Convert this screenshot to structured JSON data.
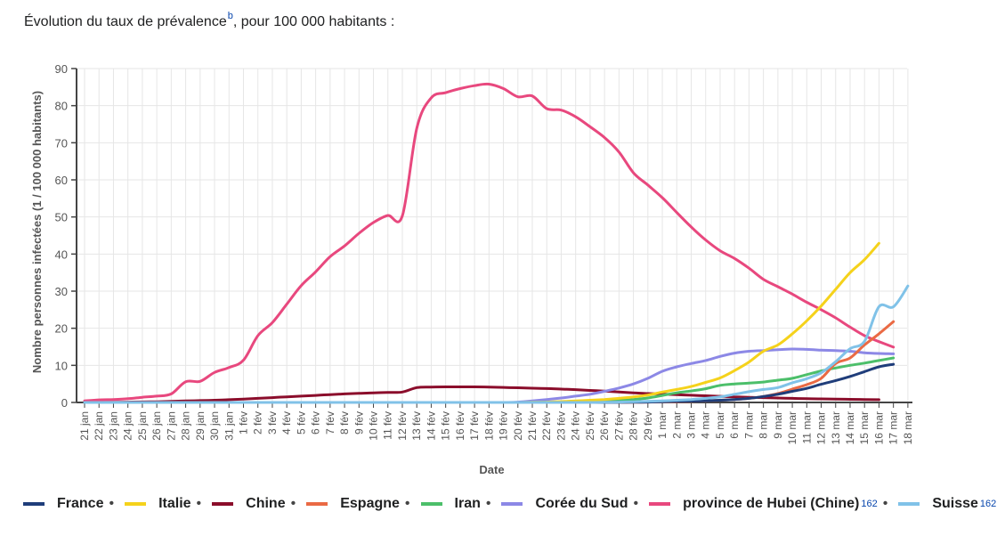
{
  "caption": {
    "text": "Évolution du taux de prévalence",
    "note": "b",
    "suffix": ", pour 100 000 habitants :"
  },
  "legend": {
    "separator": "•",
    "items": [
      {
        "label": "France",
        "color": "#1f3d7a",
        "ref": ""
      },
      {
        "label": "Italie",
        "color": "#f5d21b",
        "ref": ""
      },
      {
        "label": "Chine",
        "color": "#8b0d2b",
        "ref": ""
      },
      {
        "label": "Espagne",
        "color": "#ea6a44",
        "ref": ""
      },
      {
        "label": "Iran",
        "color": "#4cbf6a",
        "ref": ""
      },
      {
        "label": "Corée du Sud",
        "color": "#8c88e6",
        "ref": ""
      },
      {
        "label": "province de Hubei (Chine)",
        "color": "#e8487e",
        "ref": "162"
      },
      {
        "label": "Suisse",
        "color": "#80c2e8",
        "ref": "162"
      }
    ]
  },
  "chart_data": {
    "type": "line",
    "ylabel": "Nombre personnes infectées (1 / 100 000 habitants)",
    "xlabel": "Date",
    "ylim": [
      0,
      90
    ],
    "yticks": [
      0,
      10,
      20,
      30,
      40,
      50,
      60,
      70,
      80,
      90
    ],
    "grid": true,
    "legend_position": "bottom",
    "x": [
      "21 jan",
      "22 jan",
      "23 jan",
      "24 jan",
      "25 jan",
      "26 jan",
      "27 jan",
      "28 jan",
      "29 jan",
      "30 jan",
      "31 jan",
      "1 fév",
      "2 fév",
      "3 fév",
      "4 fév",
      "5 fév",
      "6 fév",
      "7 fév",
      "8 fév",
      "9 fév",
      "10 fév",
      "11 fév",
      "12 fév",
      "13 fév",
      "14 fév",
      "15 fév",
      "16 fév",
      "17 fév",
      "18 fév",
      "19 fév",
      "20 fév",
      "21 fév",
      "22 fév",
      "23 fév",
      "24 fév",
      "25 fév",
      "26 fév",
      "27 fév",
      "28 fév",
      "29 fév",
      "1 mar",
      "2 mar",
      "3 mar",
      "4 mar",
      "5 mar",
      "6 mar",
      "7 mar",
      "8 mar",
      "9 mar",
      "10 mar",
      "11 mar",
      "12 mar",
      "13 mar",
      "14 mar",
      "15 mar",
      "16 mar",
      "17 mar",
      "18 mar"
    ],
    "series": [
      {
        "name": "Chine",
        "color": "#8b0d2b",
        "values": [
          0.03,
          0.04,
          0.06,
          0.1,
          0.15,
          0.2,
          0.3,
          0.4,
          0.5,
          0.6,
          0.75,
          0.9,
          1.1,
          1.3,
          1.5,
          1.7,
          1.9,
          2.1,
          2.3,
          2.45,
          2.6,
          2.7,
          2.8,
          4.0,
          4.15,
          4.2,
          4.2,
          4.2,
          4.15,
          4.05,
          3.95,
          3.85,
          3.75,
          3.6,
          3.45,
          3.25,
          3.05,
          2.8,
          2.6,
          2.4,
          2.25,
          2.1,
          1.95,
          1.8,
          1.65,
          1.5,
          1.4,
          1.3,
          1.2,
          1.1,
          1.0,
          0.95,
          0.9,
          0.85,
          0.8,
          0.75,
          null,
          null
        ]
      },
      {
        "name": "province de Hubei (Chine)",
        "color": "#e8487e",
        "values": [
          0.4,
          0.7,
          0.8,
          1.0,
          1.4,
          1.7,
          2.3,
          5.6,
          5.7,
          8.1,
          9.4,
          11.4,
          18.0,
          21.5,
          26.5,
          31.5,
          35.2,
          39.3,
          42.2,
          45.6,
          48.5,
          50.4,
          50.3,
          73.9,
          82.1,
          83.5,
          84.6,
          85.4,
          85.8,
          84.6,
          82.4,
          82.6,
          79.2,
          78.8,
          77.0,
          74.3,
          71.4,
          67.5,
          61.9,
          58.6,
          55.2,
          51.2,
          47.3,
          43.8,
          40.9,
          38.8,
          36.2,
          33.2,
          31.2,
          29.2,
          27.0,
          25.0,
          22.8,
          20.3,
          18.0,
          16.4,
          14.9,
          null
        ]
      },
      {
        "name": "Corée du Sud",
        "color": "#8c88e6",
        "values": [
          0,
          0,
          0,
          0,
          0,
          0,
          0,
          0,
          0,
          0,
          0,
          0,
          0,
          0,
          0,
          0,
          0,
          0,
          0,
          0,
          0,
          0,
          0,
          0,
          0,
          0,
          0,
          0,
          0,
          0,
          0.1,
          0.4,
          0.8,
          1.2,
          1.7,
          2.2,
          3.0,
          3.9,
          5.0,
          6.5,
          8.4,
          9.6,
          10.5,
          11.3,
          12.4,
          13.3,
          13.8,
          14.0,
          14.2,
          14.4,
          14.3,
          14.1,
          14.0,
          13.8,
          13.4,
          13.2,
          13.1,
          null
        ]
      },
      {
        "name": "Iran",
        "color": "#4cbf6a",
        "values": [
          0,
          0,
          0,
          0,
          0,
          0,
          0,
          0,
          0,
          0,
          0,
          0,
          0,
          0,
          0,
          0,
          0,
          0,
          0,
          0,
          0,
          0,
          0,
          0,
          0,
          0,
          0,
          0,
          0,
          0,
          0.01,
          0.02,
          0.05,
          0.1,
          0.15,
          0.2,
          0.3,
          0.5,
          0.8,
          1.2,
          1.9,
          2.6,
          3.1,
          3.7,
          4.6,
          5.0,
          5.2,
          5.5,
          6.0,
          6.5,
          7.5,
          8.5,
          9.3,
          10.0,
          10.6,
          11.3,
          12.0,
          null
        ]
      },
      {
        "name": "Italie",
        "color": "#f5d21b",
        "values": [
          0,
          0,
          0,
          0,
          0,
          0,
          0,
          0,
          0,
          0,
          0,
          0,
          0,
          0,
          0,
          0,
          0,
          0,
          0,
          0,
          0,
          0,
          0,
          0,
          0,
          0,
          0,
          0,
          0,
          0,
          0,
          0.05,
          0.1,
          0.25,
          0.4,
          0.6,
          0.8,
          1.1,
          1.5,
          2.0,
          2.8,
          3.5,
          4.3,
          5.4,
          6.6,
          8.6,
          10.9,
          13.8,
          15.5,
          18.5,
          22.0,
          26.0,
          30.5,
          35.0,
          38.5,
          42.9,
          null,
          null
        ]
      },
      {
        "name": "Espagne",
        "color": "#ea6a44",
        "values": [
          0,
          0,
          0,
          0,
          0,
          0,
          0,
          0,
          0,
          0,
          0,
          0,
          0,
          0,
          0,
          0,
          0,
          0,
          0,
          0,
          0,
          0,
          0,
          0,
          0,
          0,
          0,
          0,
          0,
          0,
          0,
          0,
          0,
          0,
          0,
          0,
          0.01,
          0.02,
          0.05,
          0.1,
          0.15,
          0.2,
          0.3,
          0.4,
          0.6,
          0.8,
          1.1,
          1.6,
          2.4,
          3.6,
          4.8,
          6.5,
          10.5,
          12.0,
          15.5,
          18.5,
          21.8,
          null
        ]
      },
      {
        "name": "France",
        "color": "#1f3d7a",
        "values": [
          0,
          0,
          0,
          0,
          0,
          0,
          0,
          0,
          0,
          0,
          0,
          0,
          0,
          0,
          0,
          0,
          0,
          0,
          0,
          0,
          0,
          0,
          0,
          0,
          0,
          0,
          0,
          0,
          0,
          0,
          0,
          0,
          0,
          0,
          0,
          0,
          0.01,
          0.03,
          0.06,
          0.1,
          0.2,
          0.3,
          0.35,
          0.45,
          0.6,
          0.8,
          1.1,
          1.6,
          2.2,
          3.0,
          3.8,
          4.9,
          5.9,
          7.0,
          8.3,
          9.6,
          10.3,
          null
        ]
      },
      {
        "name": "Suisse",
        "color": "#80c2e8",
        "values": [
          0,
          0,
          0,
          0,
          0,
          0,
          0,
          0,
          0,
          0,
          0,
          0,
          0,
          0,
          0,
          0,
          0,
          0,
          0,
          0,
          0,
          0,
          0,
          0,
          0,
          0,
          0,
          0,
          0,
          0,
          0,
          0,
          0,
          0,
          0,
          0,
          0.05,
          0.1,
          0.2,
          0.3,
          0.4,
          0.6,
          0.8,
          1.1,
          1.5,
          2.2,
          2.9,
          3.5,
          4.0,
          5.3,
          6.4,
          8.0,
          11.0,
          14.5,
          16.5,
          25.8,
          25.8,
          31.4
        ]
      }
    ]
  }
}
